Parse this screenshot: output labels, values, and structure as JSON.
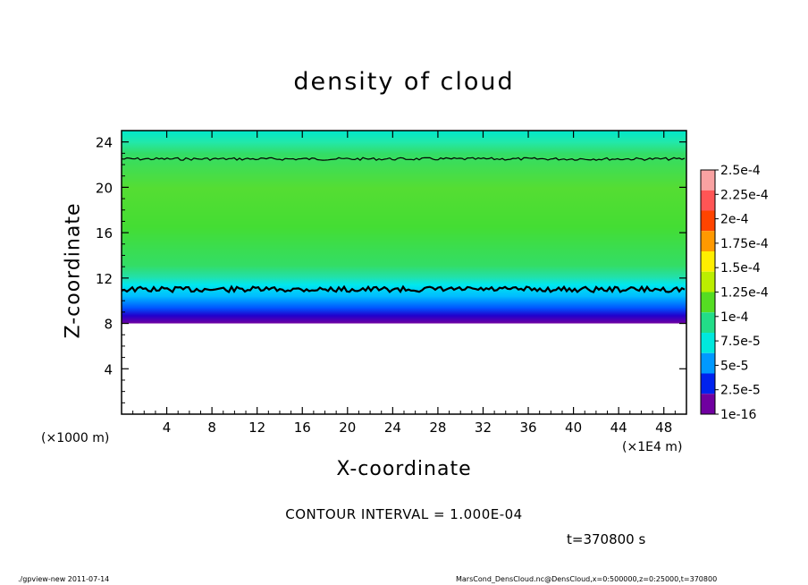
{
  "chart_data": {
    "type": "heatmap",
    "title": "density of cloud",
    "xlabel": "X-coordinate",
    "ylabel": "Z-coordinate",
    "x_unit_note": "(×1000 m)",
    "x_scale_note": "(×1E4 m)",
    "xlim": [
      0,
      50
    ],
    "ylim": [
      0,
      25
    ],
    "x_ticks": [
      4,
      8,
      12,
      16,
      20,
      24,
      28,
      32,
      36,
      40,
      44,
      48
    ],
    "y_ticks": [
      4,
      8,
      12,
      16,
      20,
      24
    ],
    "colorbar": {
      "levels": [
        "2.5e-4",
        "2.25e-4",
        "2e-4",
        "1.75e-4",
        "1.5e-4",
        "1.25e-4",
        "1e-4",
        "7.5e-5",
        "5e-5",
        "2.5e-5",
        "1e-16"
      ],
      "colors": [
        "#f9a2a2",
        "#f55",
        "#ff4400",
        "#ff9900",
        "#ffee00",
        "#bbee00",
        "#55dd22",
        "#22dd88",
        "#00e8dd",
        "#0099ff",
        "#0022ee",
        "#7000a0"
      ]
    },
    "cloud_layer": {
      "base_z": 8,
      "top_z": 22.5,
      "contour_1e-4_lower_z": 11,
      "contour_1e-4_upper_z": 22.5
    },
    "contour_interval": "CONTOUR INTERVAL = 1.000E-04",
    "time": "t=370800 s"
  },
  "footer": {
    "left": "./gpview-new  2011-07-14",
    "right": "MarsCond_DensCloud.nc@DensCloud,x=0:500000,z=0:25000,t=370800"
  }
}
